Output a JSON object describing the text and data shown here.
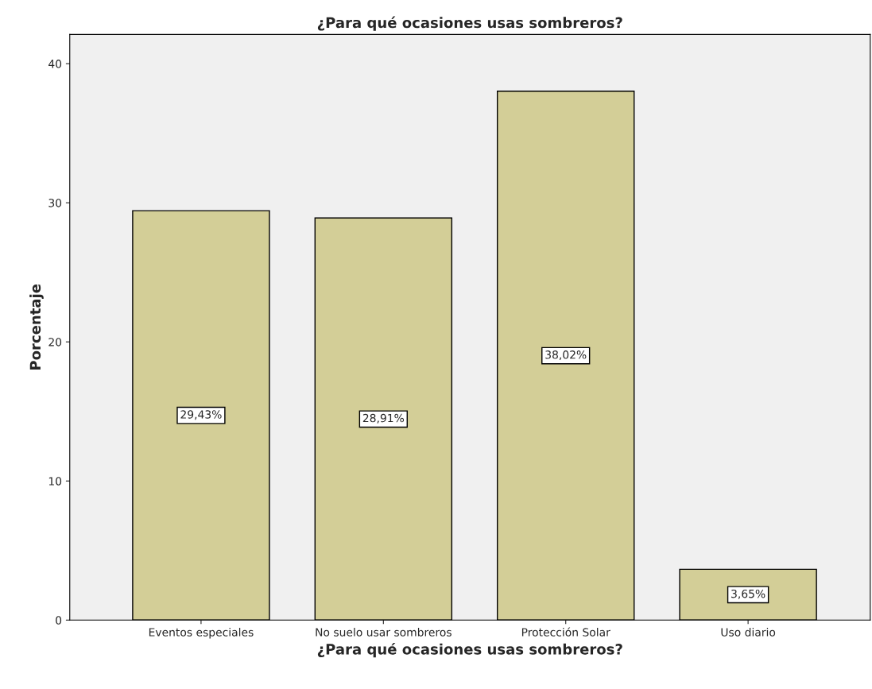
{
  "chart_data": {
    "type": "bar",
    "title": "¿Para qué ocasiones usas sombreros?",
    "xlabel": "¿Para qué ocasiones usas sombreros?",
    "ylabel": "Porcentaje",
    "categories": [
      "Eventos especiales",
      "No suelo usar sombreros",
      "Protección Solar",
      "Uso diario"
    ],
    "values": [
      29.43,
      28.91,
      38.02,
      3.65
    ],
    "value_labels": [
      "29,43%",
      "28,91%",
      "38,02%",
      "3,65%"
    ],
    "color": "#d3ce97",
    "ylim": [
      0,
      42.1
    ],
    "yticks": [
      0,
      10,
      20,
      30,
      40
    ],
    "grid": false,
    "legend": false
  }
}
